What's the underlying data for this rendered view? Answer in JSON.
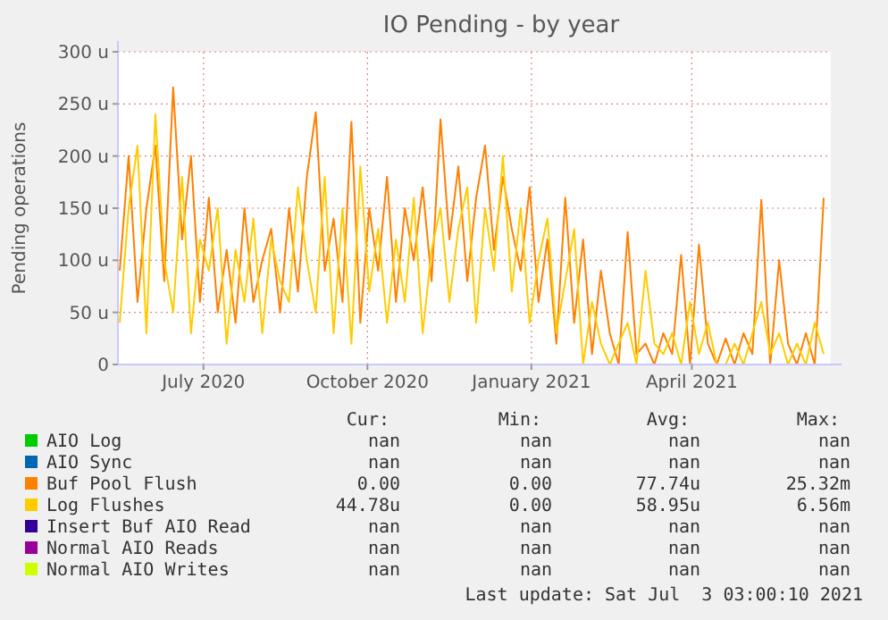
{
  "chart_data": {
    "type": "line",
    "title": "IO Pending - by year",
    "ylabel": "Pending operations",
    "xlim": [
      "2020-05-29",
      "2021-07-03"
    ],
    "xticks": [
      {
        "value": "2020-07-16",
        "label": "July 2020"
      },
      {
        "value": "2020-10-16",
        "label": "October 2020"
      },
      {
        "value": "2021-01-16",
        "label": "January 2021"
      },
      {
        "value": "2021-04-16",
        "label": "April 2021"
      }
    ],
    "ylim": [
      0,
      300
    ],
    "yticks": [
      0,
      {
        "value": 50,
        "label": "50 u"
      },
      {
        "value": 100,
        "label": "100 u"
      },
      {
        "value": 150,
        "label": "150 u"
      },
      {
        "value": 200,
        "label": "200 u"
      },
      {
        "value": 250,
        "label": "250 u"
      },
      {
        "value": 300,
        "label": "300 u"
      }
    ],
    "grid": true,
    "legend": "bottom",
    "marker": "none",
    "line_style": "solid",
    "x": [
      "2020-05-30",
      "2020-06-04",
      "2020-06-09",
      "2020-06-14",
      "2020-06-19",
      "2020-06-24",
      "2020-06-29",
      "2020-07-04",
      "2020-07-09",
      "2020-07-14",
      "2020-07-19",
      "2020-07-24",
      "2020-07-29",
      "2020-08-03",
      "2020-08-08",
      "2020-08-13",
      "2020-08-18",
      "2020-08-23",
      "2020-08-28",
      "2020-09-02",
      "2020-09-07",
      "2020-09-12",
      "2020-09-17",
      "2020-09-22",
      "2020-09-27",
      "2020-10-02",
      "2020-10-07",
      "2020-10-12",
      "2020-10-17",
      "2020-10-22",
      "2020-10-27",
      "2020-11-01",
      "2020-11-06",
      "2020-11-11",
      "2020-11-16",
      "2020-11-21",
      "2020-11-26",
      "2020-12-01",
      "2020-12-06",
      "2020-12-11",
      "2020-12-16",
      "2020-12-21",
      "2020-12-26",
      "2020-12-31",
      "2021-01-05",
      "2021-01-10",
      "2021-01-15",
      "2021-01-20",
      "2021-01-25",
      "2021-01-30",
      "2021-02-04",
      "2021-02-09",
      "2021-02-14",
      "2021-02-19",
      "2021-02-24",
      "2021-03-01",
      "2021-03-06",
      "2021-03-11",
      "2021-03-16",
      "2021-03-21",
      "2021-03-26",
      "2021-03-31",
      "2021-04-05",
      "2021-04-10",
      "2021-04-15",
      "2021-04-20",
      "2021-04-25",
      "2021-04-30",
      "2021-05-05",
      "2021-05-10",
      "2021-05-15",
      "2021-05-20",
      "2021-05-25",
      "2021-05-30",
      "2021-06-04",
      "2021-06-09",
      "2021-06-14",
      "2021-06-19",
      "2021-06-24",
      "2021-06-29"
    ],
    "series": [
      {
        "name": "AIO Log",
        "color": "#00cc00",
        "values": [
          null,
          null,
          null,
          null,
          null,
          null,
          null,
          null,
          null,
          null,
          null,
          null,
          null,
          null,
          null,
          null,
          null,
          null,
          null,
          null,
          null,
          null,
          null,
          null,
          null,
          null,
          null,
          null,
          null,
          null,
          null,
          null,
          null,
          null,
          null,
          null,
          null,
          null,
          null,
          null,
          null,
          null,
          null,
          null,
          null,
          null,
          null,
          null,
          null,
          null,
          null,
          null,
          null,
          null,
          null,
          null,
          null,
          null,
          null,
          null,
          null,
          null,
          null,
          null,
          null,
          null,
          null,
          null,
          null,
          null,
          null,
          null,
          null,
          null,
          null,
          null,
          null,
          null,
          null,
          null
        ]
      },
      {
        "name": "AIO Sync",
        "color": "#0066b3",
        "values": [
          null,
          null,
          null,
          null,
          null,
          null,
          null,
          null,
          null,
          null,
          null,
          null,
          null,
          null,
          null,
          null,
          null,
          null,
          null,
          null,
          null,
          null,
          null,
          null,
          null,
          null,
          null,
          null,
          null,
          null,
          null,
          null,
          null,
          null,
          null,
          null,
          null,
          null,
          null,
          null,
          null,
          null,
          null,
          null,
          null,
          null,
          null,
          null,
          null,
          null,
          null,
          null,
          null,
          null,
          null,
          null,
          null,
          null,
          null,
          null,
          null,
          null,
          null,
          null,
          null,
          null,
          null,
          null,
          null,
          null,
          null,
          null,
          null,
          null,
          null,
          null,
          null,
          null,
          null,
          null
        ]
      },
      {
        "name": "Buf Pool Flush",
        "color": "#ff8000",
        "values": [
          90,
          200,
          60,
          150,
          210,
          80,
          266,
          120,
          200,
          60,
          160,
          50,
          110,
          40,
          150,
          60,
          100,
          130,
          50,
          150,
          70,
          180,
          242,
          90,
          140,
          60,
          233,
          40,
          150,
          90,
          180,
          60,
          150,
          100,
          170,
          80,
          235,
          120,
          190,
          80,
          160,
          210,
          110,
          180,
          130,
          90,
          170,
          60,
          120,
          20,
          160,
          40,
          120,
          10,
          90,
          30,
          0,
          127,
          10,
          20,
          0,
          30,
          10,
          105,
          0,
          115,
          20,
          0,
          25,
          0,
          30,
          10,
          158,
          0,
          100,
          20,
          0,
          30,
          0,
          160
        ]
      },
      {
        "name": "Log Flushes",
        "color": "#ffcc00",
        "values": [
          40,
          150,
          210,
          30,
          240,
          100,
          50,
          180,
          30,
          120,
          90,
          150,
          20,
          110,
          60,
          140,
          30,
          120,
          80,
          60,
          170,
          100,
          50,
          180,
          30,
          150,
          20,
          190,
          70,
          130,
          40,
          120,
          60,
          160,
          30,
          110,
          150,
          60,
          130,
          170,
          40,
          150,
          90,
          200,
          70,
          150,
          40,
          100,
          140,
          30,
          80,
          130,
          0,
          60,
          20,
          0,
          20,
          40,
          0,
          90,
          20,
          10,
          30,
          0,
          60,
          10,
          40,
          0,
          0,
          20,
          0,
          30,
          60,
          10,
          30,
          0,
          20,
          0,
          40,
          10
        ]
      },
      {
        "name": "Insert Buf AIO Read",
        "color": "#330099",
        "values": [
          null,
          null,
          null,
          null,
          null,
          null,
          null,
          null,
          null,
          null,
          null,
          null,
          null,
          null,
          null,
          null,
          null,
          null,
          null,
          null,
          null,
          null,
          null,
          null,
          null,
          null,
          null,
          null,
          null,
          null,
          null,
          null,
          null,
          null,
          null,
          null,
          null,
          null,
          null,
          null,
          null,
          null,
          null,
          null,
          null,
          null,
          null,
          null,
          null,
          null,
          null,
          null,
          null,
          null,
          null,
          null,
          null,
          null,
          null,
          null,
          null,
          null,
          null,
          null,
          null,
          null,
          null,
          null,
          null,
          null,
          null,
          null,
          null,
          null,
          null,
          null,
          null,
          null,
          null,
          null
        ]
      },
      {
        "name": "Normal AIO Reads",
        "color": "#990099",
        "values": [
          null,
          null,
          null,
          null,
          null,
          null,
          null,
          null,
          null,
          null,
          null,
          null,
          null,
          null,
          null,
          null,
          null,
          null,
          null,
          null,
          null,
          null,
          null,
          null,
          null,
          null,
          null,
          null,
          null,
          null,
          null,
          null,
          null,
          null,
          null,
          null,
          null,
          null,
          null,
          null,
          null,
          null,
          null,
          null,
          null,
          null,
          null,
          null,
          null,
          null,
          null,
          null,
          null,
          null,
          null,
          null,
          null,
          null,
          null,
          null,
          null,
          null,
          null,
          null,
          null,
          null,
          null,
          null,
          null,
          null,
          null,
          null,
          null,
          null,
          null,
          null,
          null,
          null,
          null,
          null
        ]
      },
      {
        "name": "Normal AIO Writes",
        "color": "#ccff00",
        "values": [
          null,
          null,
          null,
          null,
          null,
          null,
          null,
          null,
          null,
          null,
          null,
          null,
          null,
          null,
          null,
          null,
          null,
          null,
          null,
          null,
          null,
          null,
          null,
          null,
          null,
          null,
          null,
          null,
          null,
          null,
          null,
          null,
          null,
          null,
          null,
          null,
          null,
          null,
          null,
          null,
          null,
          null,
          null,
          null,
          null,
          null,
          null,
          null,
          null,
          null,
          null,
          null,
          null,
          null,
          null,
          null,
          null,
          null,
          null,
          null,
          null,
          null,
          null,
          null,
          null,
          null,
          null,
          null,
          null,
          null,
          null,
          null,
          null,
          null,
          null,
          null,
          null,
          null,
          null,
          null
        ]
      }
    ],
    "annotations": [
      "Cur:",
      "Min:",
      "Avg:",
      "Max:",
      "nan",
      "nan",
      "nan",
      "nan",
      "nan",
      "nan",
      "nan",
      "nan",
      "0.00",
      "0.00",
      "77.74u",
      "25.32m",
      "44.78u",
      "0.00",
      "58.95u",
      "6.56m",
      "nan",
      "nan",
      "nan",
      "nan",
      "nan",
      "nan",
      "nan",
      "nan",
      "nan",
      "nan",
      "nan",
      "nan",
      "Last update: Sat Jul  3 03:00:10 2021"
    ]
  }
}
